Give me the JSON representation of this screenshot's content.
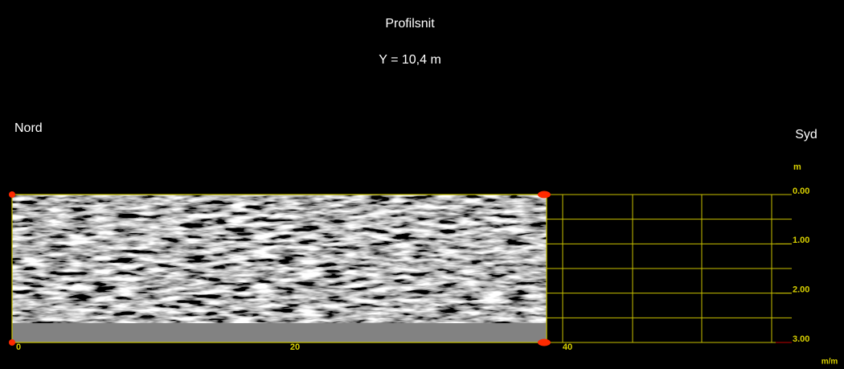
{
  "header": {
    "title": "Profilsnit",
    "subtitle": "Y = 10,4 m"
  },
  "sides": {
    "left": "Nord",
    "right": "Syd"
  },
  "depth_axis": {
    "unit": "m",
    "labels": [
      "0.00",
      "1.00",
      "2.00",
      "3.00"
    ]
  },
  "distance_axis": {
    "unit": "m/m",
    "labels": [
      "0",
      "20",
      "40"
    ]
  }
}
